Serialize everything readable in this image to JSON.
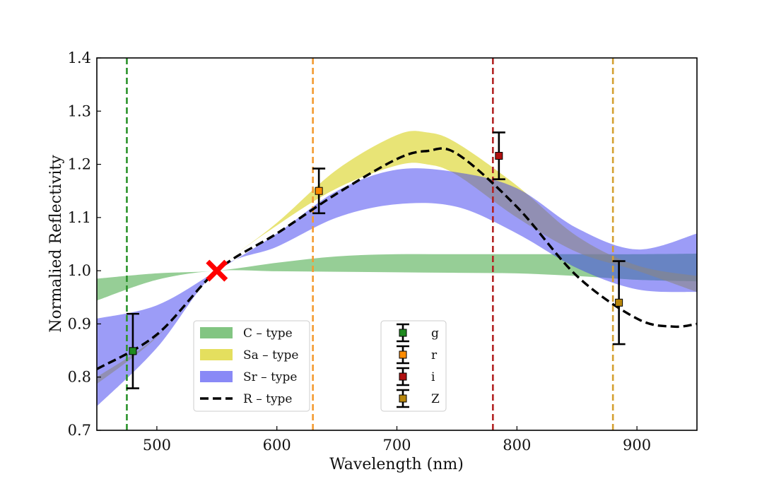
{
  "chart_data": {
    "type": "line",
    "title": "",
    "xlabel": "Wavelength (nm)",
    "ylabel": "Normalied Reflectivity",
    "xlim": [
      450,
      950
    ],
    "ylim": [
      0.7,
      1.4
    ],
    "xticks": [
      500,
      600,
      700,
      800,
      900
    ],
    "xtick_labels": [
      "500",
      "600",
      "700",
      "800",
      "900"
    ],
    "yticks": [
      0.7,
      0.8,
      0.9,
      1.0,
      1.1,
      1.2,
      1.3,
      1.4
    ],
    "ytick_labels": [
      "0.7",
      "0.8",
      "0.9",
      "1.0",
      "1.1",
      "1.2",
      "1.3",
      "1.4"
    ],
    "grid": false,
    "colors": {
      "c_type": "#2e9e2e",
      "sa_type": "#d9d21a",
      "sr_type": "#3a3af0",
      "r_type": "#000000",
      "g": "#1f8a1f",
      "r": "#ff8c00",
      "i": "#b01010",
      "z": "#b8860b",
      "marker_x": "#ff0000",
      "vline_g": "#2a922a",
      "vline_r": "#f39a30",
      "vline_i": "#b22222",
      "vline_z": "#d4a030"
    },
    "bands": [
      {
        "name": "C – type",
        "x": [
          450,
          500,
          550,
          600,
          650,
          700,
          750,
          800,
          850,
          900,
          950
        ],
        "lower": [
          0.944,
          0.983,
          1.0,
          0.999,
          0.998,
          0.997,
          0.996,
          0.995,
          0.99,
          0.983,
          0.98
        ],
        "upper": [
          0.985,
          0.995,
          1.0,
          1.015,
          1.027,
          1.031,
          1.031,
          1.031,
          1.031,
          1.031,
          1.032
        ]
      },
      {
        "name": "Sa – type",
        "x": [
          450,
          500,
          550,
          600,
          650,
          700,
          725,
          750,
          800,
          850,
          900,
          950
        ],
        "lower": [
          0.787,
          0.875,
          1.0,
          1.085,
          1.155,
          1.198,
          1.2,
          1.18,
          1.1,
          1.035,
          1.0,
          0.96
        ],
        "upper": [
          0.8,
          0.877,
          1.0,
          1.09,
          1.19,
          1.255,
          1.26,
          1.24,
          1.16,
          1.065,
          1.01,
          0.99
        ]
      },
      {
        "name": "Sr – type",
        "x": [
          450,
          500,
          550,
          600,
          650,
          700,
          750,
          800,
          850,
          900,
          950
        ],
        "lower": [
          0.745,
          0.855,
          1.0,
          1.045,
          1.1,
          1.125,
          1.12,
          1.07,
          1.005,
          0.965,
          0.96
        ],
        "upper": [
          0.91,
          0.935,
          1.0,
          1.07,
          1.15,
          1.19,
          1.185,
          1.155,
          1.08,
          1.04,
          1.07
        ]
      }
    ],
    "series": [
      {
        "name": "R – type",
        "style": "dashed",
        "x": [
          450,
          500,
          550,
          600,
          650,
          700,
          725,
          750,
          800,
          850,
          900,
          930,
          950
        ],
        "y": [
          0.815,
          0.88,
          1.0,
          1.07,
          1.145,
          1.21,
          1.225,
          1.22,
          1.12,
          0.99,
          0.91,
          0.895,
          0.9
        ]
      }
    ],
    "points": [
      {
        "name": "g",
        "x": 480,
        "y": 0.849,
        "yerr": 0.07
      },
      {
        "name": "r",
        "x": 635,
        "y": 1.15,
        "yerr": 0.042
      },
      {
        "name": "i",
        "x": 785,
        "y": 1.216,
        "yerr": 0.044
      },
      {
        "name": "Z",
        "x": 885,
        "y": 0.94,
        "yerr": 0.078
      }
    ],
    "vlines": [
      {
        "name": "g",
        "x": 475
      },
      {
        "name": "r",
        "x": 630
      },
      {
        "name": "i",
        "x": 780
      },
      {
        "name": "Z",
        "x": 880
      }
    ],
    "normalization_marker": {
      "x": 550,
      "y": 1.0,
      "symbol": "X"
    },
    "legend_bands": [
      {
        "label": "C – type"
      },
      {
        "label": "Sa – type"
      },
      {
        "label": "Sr – type"
      },
      {
        "label": "R – type"
      }
    ],
    "legend_bands_placement": "lower-left",
    "legend_points": [
      {
        "label": "g"
      },
      {
        "label": "r"
      },
      {
        "label": "i"
      },
      {
        "label": "Z"
      }
    ],
    "legend_points_placement": "lower-center"
  }
}
